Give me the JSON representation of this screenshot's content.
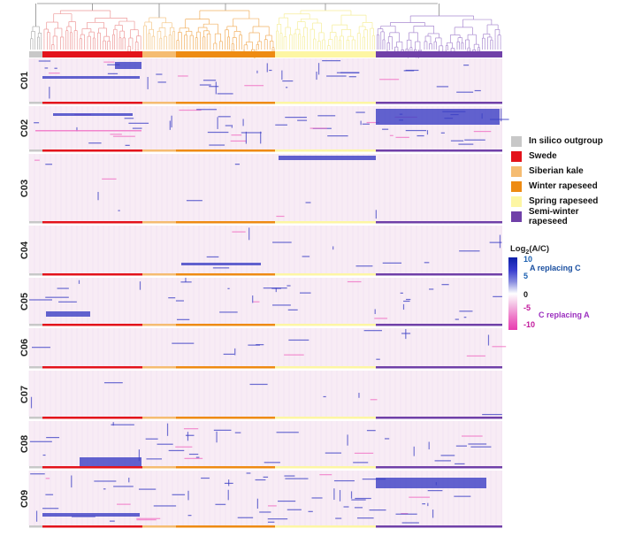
{
  "groups": [
    {
      "name": "In silico outgroup",
      "color": "#c8c8c8",
      "tree_color": "#b0b0b0"
    },
    {
      "name": "Swede",
      "color": "#e3131b",
      "tree_color": "#ee9a9a"
    },
    {
      "name": "Siberian kale",
      "color": "#f5bc72",
      "tree_color": "#f5c98c"
    },
    {
      "name": "Winter rapeseed",
      "color": "#ee8b13",
      "tree_color": "#f2b060"
    },
    {
      "name": "Spring rapeseed",
      "color": "#fdf6a3",
      "tree_color": "#f6ee9a"
    },
    {
      "name": "Semi-winter rapeseed",
      "color": "#7040a8",
      "tree_color": "#a98ad0"
    }
  ],
  "chromosomes": [
    "C01",
    "C02",
    "C03",
    "C04",
    "C05",
    "C06",
    "C07",
    "C08",
    "C09"
  ],
  "scale": {
    "title_main": "Log",
    "title_sub": "2",
    "title_rest": "(A/C)",
    "ticks": [
      {
        "label": "10",
        "value": 10,
        "tone": "blue"
      },
      {
        "label": "5",
        "value": 5,
        "tone": "blue"
      },
      {
        "label": "0",
        "value": 0,
        "tone": "black"
      },
      {
        "label": "-5",
        "value": -5,
        "tone": "pink"
      },
      {
        "label": "-10",
        "value": -10,
        "tone": "pink"
      }
    ],
    "upper_annotation": "A replacing C",
    "lower_annotation": "C replacing A"
  },
  "colors": {
    "background_tint": "#f8ecf5",
    "blue_signal": "#3b3fc4",
    "pink_signal": "#f06cc2"
  }
}
